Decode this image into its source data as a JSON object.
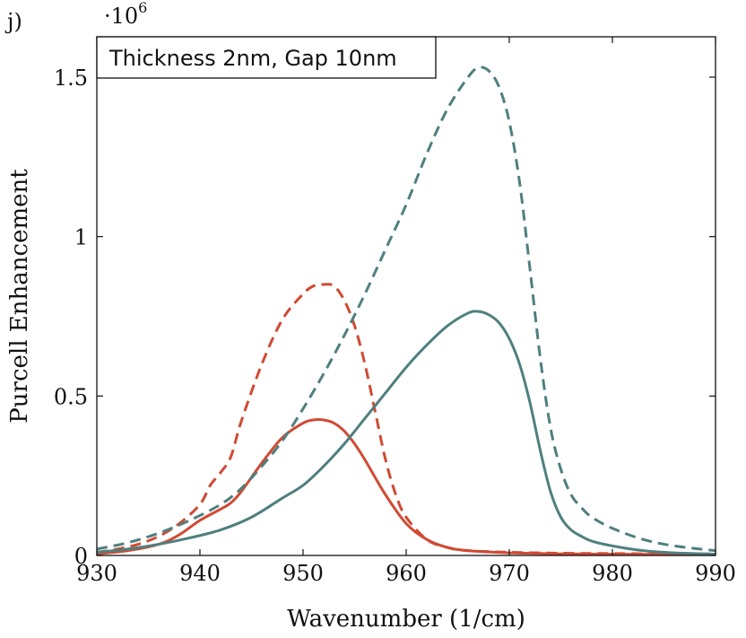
{
  "panel_label": "j)",
  "chart_data": {
    "type": "line",
    "title": "Thickness 2nm, Gap 10nm",
    "xlabel": "Wavenumber (1/cm)",
    "ylabel": "Purcell Enhancement",
    "y_multiplier": "·10",
    "y_multiplier_exp": "6",
    "xlim": [
      930,
      990
    ],
    "ylim": [
      0,
      1.6
    ],
    "grid": false,
    "x_ticks": [
      930,
      940,
      950,
      960,
      970,
      980,
      990
    ],
    "x_tick_labels": [
      "930",
      "940",
      "950",
      "960",
      "970",
      "980",
      "990"
    ],
    "y_ticks": [
      0,
      0.5,
      1,
      1.5
    ],
    "y_tick_labels": [
      "0",
      "0.5",
      "1",
      "1.5"
    ],
    "colors": {
      "red": "#d04a33",
      "teal": "#4f7f7f"
    },
    "series": [
      {
        "name": "red-dashed",
        "color": "#d04a33",
        "dashed": true,
        "x": [
          930,
          932,
          934,
          936,
          938,
          940,
          941,
          942,
          943,
          944,
          946,
          948,
          950,
          951,
          952,
          953,
          954,
          955,
          956,
          957,
          958,
          959,
          960,
          962,
          964,
          966,
          970,
          975,
          980,
          985,
          990
        ],
        "y": [
          0.01,
          0.02,
          0.035,
          0.06,
          0.1,
          0.16,
          0.22,
          0.26,
          0.31,
          0.42,
          0.6,
          0.74,
          0.82,
          0.845,
          0.85,
          0.845,
          0.8,
          0.72,
          0.6,
          0.45,
          0.3,
          0.19,
          0.12,
          0.05,
          0.025,
          0.015,
          0.01,
          0.007,
          0.006,
          0.005,
          0.005
        ]
      },
      {
        "name": "red-solid",
        "color": "#d04a33",
        "dashed": false,
        "x": [
          930,
          933,
          936,
          938,
          940,
          942,
          943,
          944,
          946,
          948,
          950,
          951,
          952,
          953,
          954,
          955,
          956,
          958,
          960,
          962,
          964,
          966,
          970,
          975,
          980,
          985,
          990
        ],
        "y": [
          0.005,
          0.015,
          0.035,
          0.065,
          0.11,
          0.145,
          0.165,
          0.2,
          0.29,
          0.37,
          0.415,
          0.425,
          0.425,
          0.415,
          0.39,
          0.35,
          0.3,
          0.19,
          0.1,
          0.05,
          0.025,
          0.015,
          0.008,
          0.005,
          0.004,
          0.003,
          0.003
        ]
      },
      {
        "name": "teal-dashed",
        "color": "#4f7f7f",
        "dashed": true,
        "x": [
          930,
          933,
          936,
          939,
          942,
          944,
          946,
          948,
          950,
          952,
          954,
          956,
          958,
          960,
          962,
          964,
          966,
          967,
          968,
          969,
          970,
          971,
          972,
          973,
          974,
          975,
          976,
          977,
          978,
          980,
          983,
          986,
          990
        ],
        "y": [
          0.02,
          0.04,
          0.07,
          0.11,
          0.16,
          0.21,
          0.28,
          0.36,
          0.46,
          0.57,
          0.69,
          0.82,
          0.96,
          1.1,
          1.26,
          1.4,
          1.5,
          1.53,
          1.52,
          1.47,
          1.36,
          1.17,
          0.9,
          0.62,
          0.4,
          0.27,
          0.19,
          0.15,
          0.12,
          0.085,
          0.05,
          0.03,
          0.015
        ]
      },
      {
        "name": "teal-solid",
        "color": "#4f7f7f",
        "dashed": false,
        "x": [
          930,
          933,
          936,
          939,
          942,
          945,
          948,
          950,
          952,
          954,
          956,
          958,
          960,
          962,
          964,
          966,
          967,
          968,
          969,
          970,
          971,
          972,
          973,
          974,
          975,
          976,
          977,
          978,
          980,
          983,
          986,
          990
        ],
        "y": [
          0.01,
          0.02,
          0.035,
          0.055,
          0.08,
          0.12,
          0.18,
          0.22,
          0.28,
          0.35,
          0.43,
          0.51,
          0.59,
          0.66,
          0.72,
          0.76,
          0.765,
          0.755,
          0.73,
          0.68,
          0.6,
          0.48,
          0.33,
          0.2,
          0.12,
          0.08,
          0.06,
          0.045,
          0.03,
          0.015,
          0.008,
          0.004
        ]
      }
    ]
  }
}
